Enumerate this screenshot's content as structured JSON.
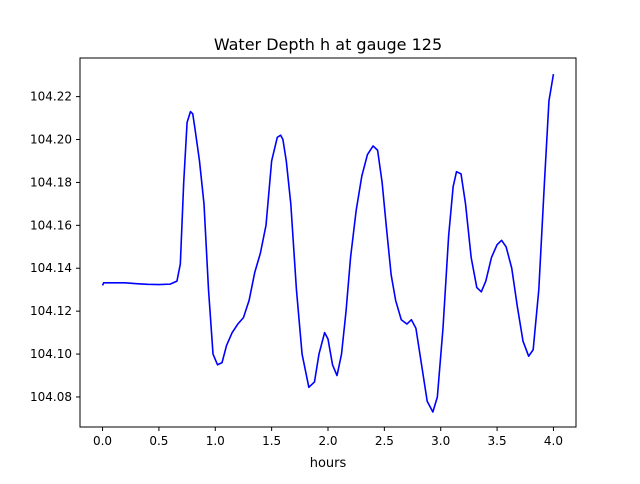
{
  "chart_data": {
    "type": "line",
    "title": "Water Depth h at gauge 125",
    "xlabel": "hours",
    "ylabel": "",
    "xlim": [
      -0.2,
      4.2
    ],
    "ylim": [
      104.066,
      104.238
    ],
    "xticks": [
      0.0,
      0.5,
      1.0,
      1.5,
      2.0,
      2.5,
      3.0,
      3.5,
      4.0
    ],
    "xtick_labels": [
      "0.0",
      "0.5",
      "1.0",
      "1.5",
      "2.0",
      "2.5",
      "3.0",
      "3.5",
      "4.0"
    ],
    "yticks": [
      104.08,
      104.1,
      104.12,
      104.14,
      104.16,
      104.18,
      104.2,
      104.22
    ],
    "ytick_labels": [
      "104.08",
      "104.10",
      "104.12",
      "104.14",
      "104.16",
      "104.18",
      "104.20",
      "104.22"
    ],
    "grid": false,
    "line_color": "#0000ff",
    "series": [
      {
        "x": [
          0.0,
          0.01,
          0.1,
          0.2,
          0.3,
          0.4,
          0.5,
          0.6,
          0.66,
          0.69,
          0.72,
          0.75,
          0.78,
          0.8,
          0.82,
          0.86,
          0.9,
          0.94,
          0.98,
          1.02,
          1.06,
          1.1,
          1.15,
          1.2,
          1.25,
          1.3,
          1.35,
          1.4,
          1.45,
          1.5,
          1.55,
          1.58,
          1.6,
          1.63,
          1.67,
          1.72,
          1.77,
          1.83,
          1.88,
          1.92,
          1.97,
          2.0,
          2.04,
          2.08,
          2.12,
          2.16,
          2.2,
          2.25,
          2.3,
          2.35,
          2.4,
          2.44,
          2.48,
          2.52,
          2.56,
          2.6,
          2.65,
          2.7,
          2.74,
          2.78,
          2.83,
          2.88,
          2.93,
          2.97,
          3.02,
          3.07,
          3.11,
          3.14,
          3.18,
          3.22,
          3.27,
          3.32,
          3.36,
          3.4,
          3.45,
          3.5,
          3.54,
          3.58,
          3.63,
          3.68,
          3.73,
          3.78,
          3.82,
          3.87,
          3.92,
          3.96,
          4.0
        ],
        "y": [
          104.132,
          104.1332,
          104.1332,
          104.1332,
          104.1328,
          104.1325,
          104.1324,
          104.1326,
          104.134,
          104.142,
          104.18,
          104.208,
          104.213,
          104.212,
          104.205,
          104.19,
          104.17,
          104.13,
          104.1,
          104.095,
          104.096,
          104.104,
          104.11,
          104.114,
          104.117,
          104.125,
          104.138,
          104.147,
          104.16,
          104.19,
          104.201,
          104.202,
          104.2,
          104.19,
          104.17,
          104.13,
          104.1,
          104.0845,
          104.087,
          104.1,
          104.11,
          104.107,
          104.095,
          104.09,
          104.1,
          104.12,
          104.145,
          104.167,
          104.183,
          104.193,
          104.197,
          104.195,
          104.18,
          104.158,
          104.137,
          104.125,
          104.116,
          104.114,
          104.116,
          104.112,
          104.095,
          104.078,
          104.073,
          104.08,
          104.112,
          104.155,
          104.178,
          104.185,
          104.184,
          104.17,
          104.145,
          104.131,
          104.129,
          104.134,
          104.145,
          104.151,
          104.153,
          104.15,
          104.14,
          104.122,
          104.106,
          104.099,
          104.102,
          104.13,
          104.18,
          104.218,
          104.2305
        ]
      }
    ]
  }
}
